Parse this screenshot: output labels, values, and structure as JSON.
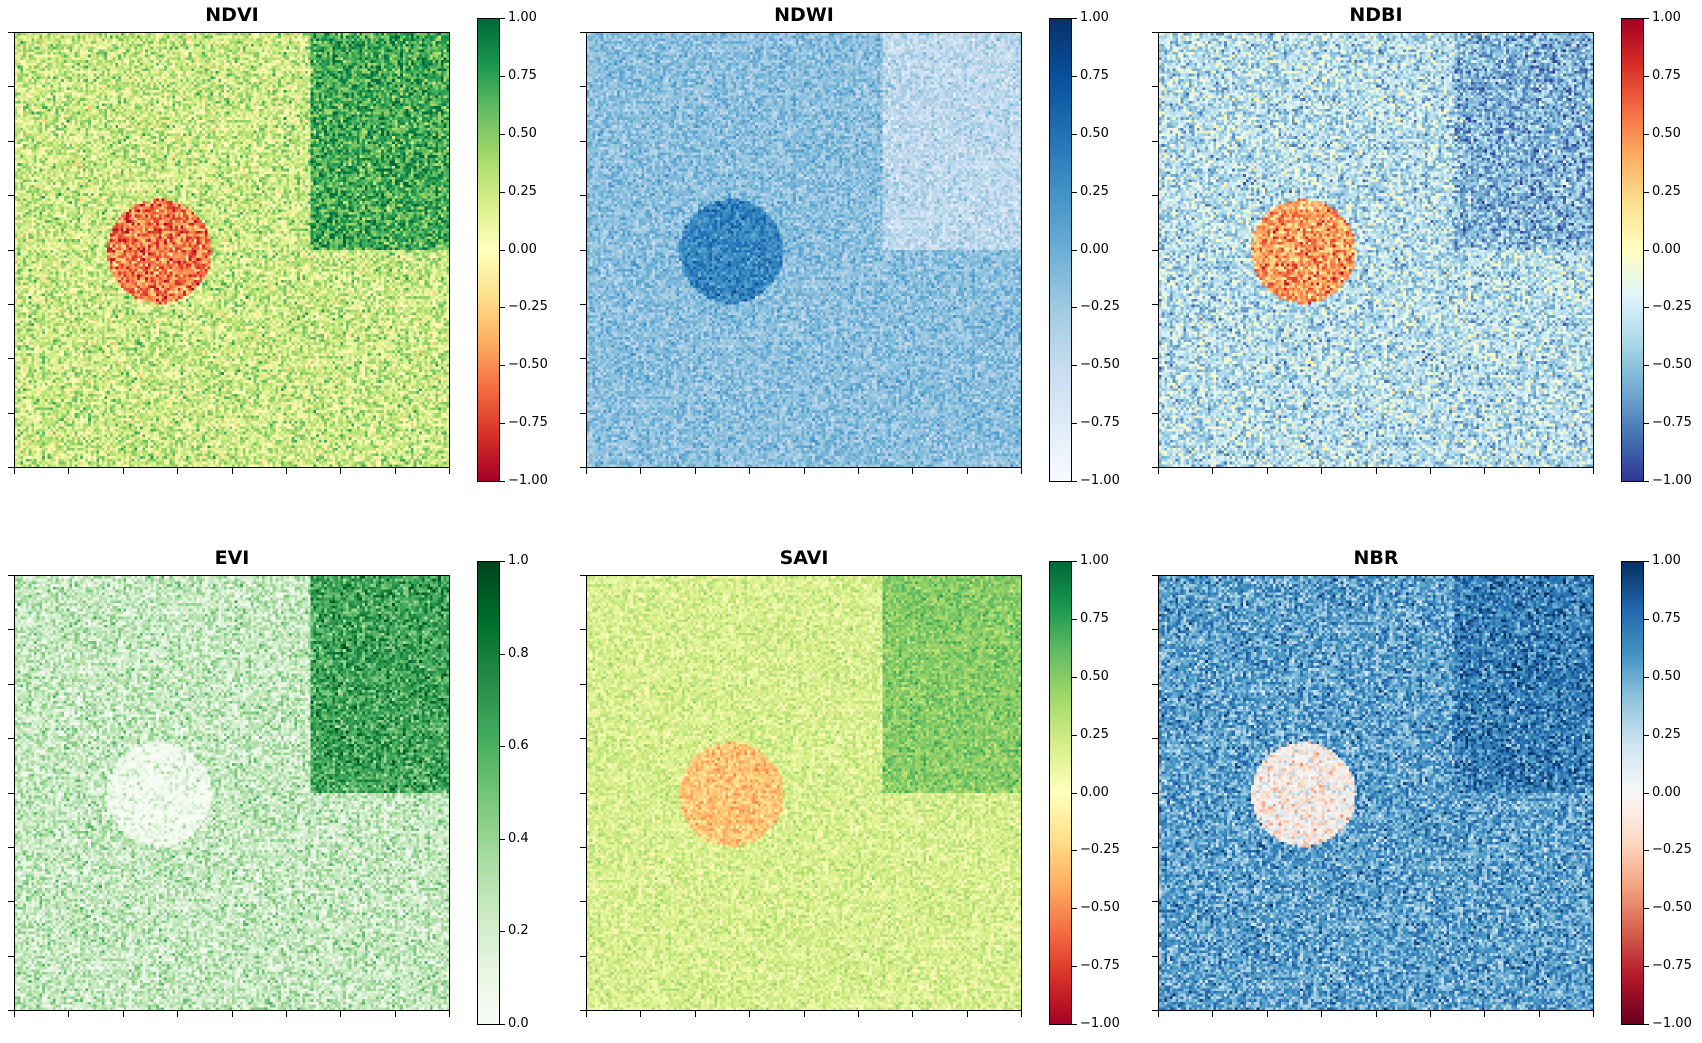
{
  "colors": {
    "RdYlGn": [
      "#a50026",
      "#d73027",
      "#f46d43",
      "#fdae61",
      "#fee08b",
      "#ffffbf",
      "#d9ef8b",
      "#a6d96a",
      "#66bd63",
      "#1a9850",
      "#006837"
    ],
    "Blues": [
      "#f7fbff",
      "#deebf7",
      "#c6dbef",
      "#9ecae1",
      "#6baed6",
      "#4292c6",
      "#2171b5",
      "#08519c",
      "#08306b"
    ],
    "RdYlBu_r": [
      "#313695",
      "#4575b4",
      "#74add1",
      "#abd9e9",
      "#e0f3f8",
      "#ffffbf",
      "#fee090",
      "#fdae61",
      "#f46d43",
      "#d73027",
      "#a50026"
    ],
    "Greens": [
      "#f7fcf5",
      "#e5f5e0",
      "#c7e9c0",
      "#a1d99b",
      "#74c476",
      "#41ab5d",
      "#238b45",
      "#006d2c",
      "#00441b"
    ],
    "RdBu": [
      "#67001f",
      "#b2182b",
      "#d6604d",
      "#f4a582",
      "#fddbc7",
      "#f7f7f7",
      "#d1e5f0",
      "#92c5de",
      "#4393c3",
      "#2166ac",
      "#053061"
    ]
  },
  "chart_data": [
    {
      "type": "heatmap",
      "title": "NDVI",
      "colormap": "RdYlGn",
      "vmin": -1.0,
      "vmax": 1.0,
      "colorbar_ticks": [
        "1.00",
        "0.75",
        "0.50",
        "0.25",
        "0.00",
        "−0.25",
        "−0.50",
        "−0.75",
        "−1.00"
      ],
      "grid_size": 160,
      "background": 0.25,
      "noise": 0.35,
      "regions": [
        {
          "shape": "rect",
          "row_range": [
            0.0,
            0.5
          ],
          "col_range": [
            0.68,
            1.0
          ],
          "value": 0.7
        },
        {
          "shape": "circle",
          "center_row": 0.5,
          "center_col": 0.33,
          "radius": 0.12,
          "value": -0.55
        }
      ]
    },
    {
      "type": "heatmap",
      "title": "NDWI",
      "colormap": "Blues",
      "vmin": -1.0,
      "vmax": 1.0,
      "colorbar_ticks": [
        "1.00",
        "0.75",
        "0.50",
        "0.25",
        "0.00",
        "−0.25",
        "−0.50",
        "−0.75",
        "−1.00"
      ],
      "grid_size": 160,
      "background": -0.15,
      "noise": 0.3,
      "regions": [
        {
          "shape": "rect",
          "row_range": [
            0.0,
            0.5
          ],
          "col_range": [
            0.68,
            1.0
          ],
          "value": -0.45
        },
        {
          "shape": "circle",
          "center_row": 0.5,
          "center_col": 0.33,
          "radius": 0.12,
          "value": 0.35
        }
      ]
    },
    {
      "type": "heatmap",
      "title": "NDBI",
      "colormap": "RdYlBu_r",
      "vmin": -1.0,
      "vmax": 1.0,
      "colorbar_ticks": [
        "1.00",
        "0.75",
        "0.50",
        "0.25",
        "0.00",
        "−0.25",
        "−0.50",
        "−0.75",
        "−1.00"
      ],
      "grid_size": 160,
      "background": -0.35,
      "noise": 0.35,
      "regions": [
        {
          "shape": "rect",
          "row_range": [
            0.0,
            0.5
          ],
          "col_range": [
            0.68,
            1.0
          ],
          "value": -0.55
        },
        {
          "shape": "circle",
          "center_row": 0.5,
          "center_col": 0.33,
          "radius": 0.12,
          "value": 0.45
        }
      ]
    },
    {
      "type": "heatmap",
      "title": "EVI",
      "colormap": "Greens",
      "vmin": 0.0,
      "vmax": 1.0,
      "colorbar_ticks": [
        "1.0",
        "0.8",
        "0.6",
        "0.4",
        "0.2",
        "0.0"
      ],
      "grid_size": 160,
      "background": 0.25,
      "noise": 0.25,
      "regions": [
        {
          "shape": "rect",
          "row_range": [
            0.0,
            0.5
          ],
          "col_range": [
            0.68,
            1.0
          ],
          "value": 0.65
        },
        {
          "shape": "circle",
          "center_row": 0.5,
          "center_col": 0.33,
          "radius": 0.12,
          "value": 0.03
        }
      ]
    },
    {
      "type": "heatmap",
      "title": "SAVI",
      "colormap": "RdYlGn",
      "vmin": -1.0,
      "vmax": 1.0,
      "colorbar_ticks": [
        "1.00",
        "0.75",
        "0.50",
        "0.25",
        "0.00",
        "−0.25",
        "−0.50",
        "−0.75",
        "−1.00"
      ],
      "grid_size": 160,
      "background": 0.2,
      "noise": 0.18,
      "regions": [
        {
          "shape": "rect",
          "row_range": [
            0.0,
            0.5
          ],
          "col_range": [
            0.68,
            1.0
          ],
          "value": 0.5
        },
        {
          "shape": "circle",
          "center_row": 0.5,
          "center_col": 0.33,
          "radius": 0.12,
          "value": -0.3
        }
      ]
    },
    {
      "type": "heatmap",
      "title": "NBR",
      "colormap": "RdBu",
      "vmin": -1.0,
      "vmax": 1.0,
      "colorbar_ticks": [
        "1.00",
        "0.75",
        "0.50",
        "0.25",
        "0.00",
        "−0.25",
        "−0.50",
        "−0.75",
        "−1.00"
      ],
      "grid_size": 160,
      "background": 0.55,
      "noise": 0.3,
      "regions": [
        {
          "shape": "rect",
          "row_range": [
            0.0,
            0.5
          ],
          "col_range": [
            0.68,
            1.0
          ],
          "value": 0.7
        },
        {
          "shape": "circle",
          "center_row": 0.5,
          "center_col": 0.33,
          "radius": 0.12,
          "value": -0.05
        }
      ]
    }
  ]
}
